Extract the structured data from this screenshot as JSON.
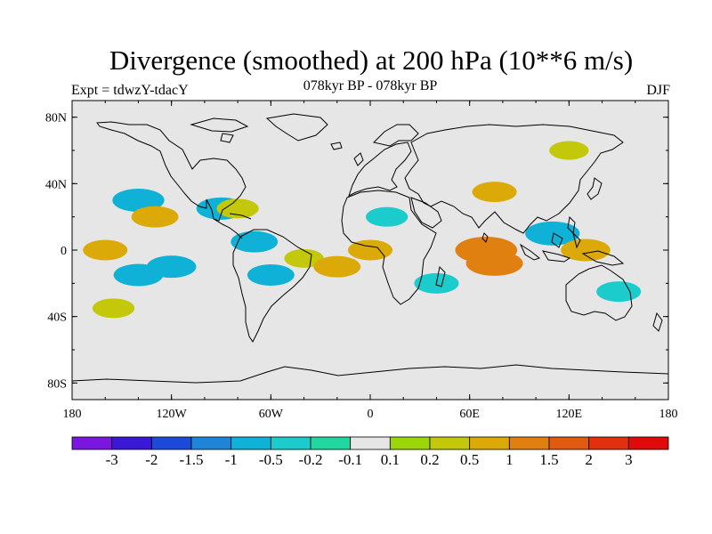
{
  "title": "Divergence (smoothed) at 200 hPa (10**6 m/s)",
  "left_label": "Expt = tdwzY-tdacY",
  "center_label": "078kyr BP - 078kyr BP",
  "right_label": "DJF",
  "map": {
    "lon_range": [
      -180,
      180
    ],
    "lat_range": [
      -90,
      90
    ],
    "background_color": "#e6e6e6",
    "lon_ticks": [
      {
        "value": -180,
        "label": "180"
      },
      {
        "value": -120,
        "label": "120W"
      },
      {
        "value": -60,
        "label": "60W"
      },
      {
        "value": 0,
        "label": "0"
      },
      {
        "value": 60,
        "label": "60E"
      },
      {
        "value": 120,
        "label": "120E"
      },
      {
        "value": 180,
        "label": "180"
      }
    ],
    "lat_ticks": [
      {
        "value": 80,
        "label": "80N"
      },
      {
        "value": 40,
        "label": "40N"
      },
      {
        "value": 0,
        "label": "0"
      },
      {
        "value": -40,
        "label": "40S"
      },
      {
        "value": -80,
        "label": "80S"
      }
    ]
  },
  "colorbar": {
    "colors": [
      "#7b16e0",
      "#3a18d6",
      "#1c4ad8",
      "#1f85d8",
      "#0fb2d6",
      "#1ccccc",
      "#22d6a0",
      "#e6e6e6",
      "#9ad60a",
      "#c4c80a",
      "#dcaa08",
      "#e08010",
      "#e05a10",
      "#e03010",
      "#e00a0a"
    ],
    "labels": [
      "-3",
      "-2",
      "-1.5",
      "-1",
      "-0.5",
      "-0.2",
      "-0.1",
      "0.1",
      "0.2",
      "0.5",
      "1",
      "1.5",
      "2",
      "3"
    ]
  },
  "chart_data": {
    "type": "heatmap",
    "title": "Divergence (smoothed) at 200 hPa (10**6 m/s)",
    "subtitle": "078kyr BP - 078kyr BP",
    "season": "DJF",
    "experiment": "Expt = tdwzY-tdacY",
    "contour_levels": [
      -3,
      -2,
      -1.5,
      -1,
      -0.5,
      -0.2,
      -0.1,
      0.1,
      0.2,
      0.5,
      1,
      1.5,
      2,
      3
    ],
    "regions": [
      {
        "lon": 120,
        "lat": 60,
        "value": 0.3
      },
      {
        "lon": 0,
        "lat": 0,
        "value": 0.5
      },
      {
        "lon": -140,
        "lat": 30,
        "value": -0.8
      },
      {
        "lon": -140,
        "lat": -15,
        "value": -0.7
      },
      {
        "lon": -120,
        "lat": -10,
        "value": -0.7
      },
      {
        "lon": -160,
        "lat": 0,
        "value": 0.5
      },
      {
        "lon": -155,
        "lat": -35,
        "value": 0.4
      },
      {
        "lon": -130,
        "lat": 20,
        "value": 0.6
      },
      {
        "lon": -90,
        "lat": 25,
        "value": -0.7
      },
      {
        "lon": -70,
        "lat": 5,
        "value": -0.6
      },
      {
        "lon": -80,
        "lat": 25,
        "value": 0.4
      },
      {
        "lon": -60,
        "lat": -15,
        "value": -0.6
      },
      {
        "lon": -40,
        "lat": -5,
        "value": 0.3
      },
      {
        "lon": -20,
        "lat": -10,
        "value": 0.6
      },
      {
        "lon": 10,
        "lat": 20,
        "value": -0.4
      },
      {
        "lon": 40,
        "lat": -20,
        "value": -0.5
      },
      {
        "lon": 70,
        "lat": 0,
        "value": 1.2
      },
      {
        "lon": 75,
        "lat": -8,
        "value": 1.0
      },
      {
        "lon": 75,
        "lat": 35,
        "value": 0.5
      },
      {
        "lon": 110,
        "lat": 10,
        "value": -0.9
      },
      {
        "lon": 130,
        "lat": 0,
        "value": 0.7
      },
      {
        "lon": 150,
        "lat": -25,
        "value": -0.5
      }
    ]
  }
}
